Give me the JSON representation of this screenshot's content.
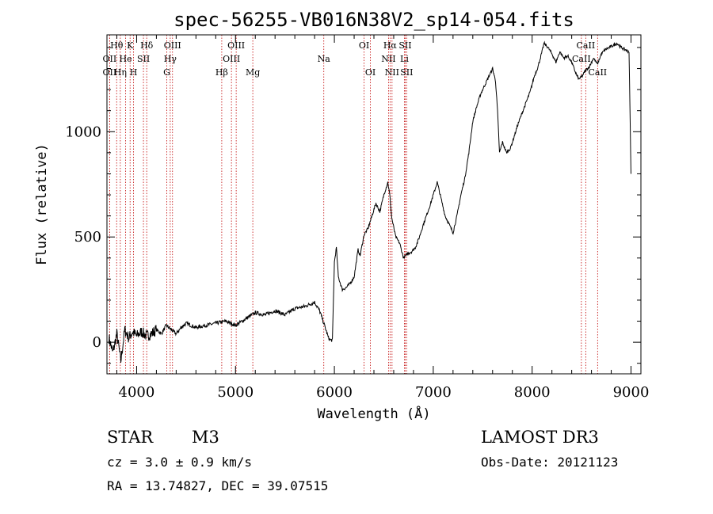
{
  "chart_data": {
    "type": "line",
    "title": "spec-56255-VB016N38V2_sp14-054.fits",
    "xlabel": "Wavelength (Å)",
    "ylabel": "Flux (relative)",
    "xlim": [
      3700,
      9100
    ],
    "ylim": [
      -150,
      1460
    ],
    "xticks": [
      4000,
      5000,
      6000,
      7000,
      8000,
      9000
    ],
    "yticks": [
      0,
      500,
      1000
    ],
    "spectrum": {
      "x": [
        3720,
        3760,
        3800,
        3840,
        3880,
        3920,
        3960,
        4000,
        4050,
        4100,
        4150,
        4200,
        4250,
        4300,
        4350,
        4400,
        4450,
        4500,
        4600,
        4700,
        4800,
        4900,
        5000,
        5100,
        5200,
        5300,
        5400,
        5500,
        5600,
        5700,
        5800,
        5850,
        5900,
        5940,
        5960,
        5980,
        6000,
        6020,
        6040,
        6080,
        6120,
        6160,
        6200,
        6240,
        6260,
        6300,
        6340,
        6380,
        6420,
        6460,
        6500,
        6540,
        6560,
        6580,
        6620,
        6660,
        6700,
        6740,
        6780,
        6820,
        6860,
        6900,
        6960,
        7000,
        7040,
        7060,
        7080,
        7120,
        7160,
        7200,
        7240,
        7280,
        7320,
        7360,
        7400,
        7440,
        7480,
        7520,
        7560,
        7600,
        7630,
        7650,
        7670,
        7700,
        7740,
        7780,
        7820,
        7860,
        7900,
        7940,
        7980,
        8020,
        8060,
        8100,
        8120,
        8160,
        8200,
        8240,
        8280,
        8320,
        8360,
        8400,
        8440,
        8470,
        8500,
        8540,
        8580,
        8620,
        8660,
        8700,
        8740,
        8780,
        8820,
        8860,
        8900,
        8940,
        8980,
        9000
      ],
      "y": [
        20,
        -50,
        40,
        -90,
        60,
        20,
        50,
        30,
        50,
        30,
        40,
        60,
        40,
        80,
        60,
        40,
        70,
        90,
        70,
        80,
        90,
        100,
        80,
        110,
        140,
        130,
        150,
        130,
        160,
        170,
        190,
        150,
        80,
        20,
        10,
        10,
        380,
        450,
        310,
        250,
        260,
        280,
        310,
        440,
        410,
        510,
        540,
        600,
        660,
        620,
        700,
        760,
        700,
        590,
        500,
        470,
        400,
        420,
        430,
        450,
        500,
        560,
        640,
        700,
        760,
        720,
        680,
        600,
        560,
        520,
        600,
        700,
        780,
        900,
        1050,
        1120,
        1180,
        1220,
        1260,
        1300,
        1240,
        1100,
        900,
        950,
        900,
        920,
        980,
        1040,
        1090,
        1140,
        1190,
        1260,
        1310,
        1380,
        1420,
        1400,
        1370,
        1330,
        1380,
        1350,
        1360,
        1330,
        1280,
        1250,
        1260,
        1290,
        1310,
        1350,
        1320,
        1370,
        1390,
        1400,
        1410,
        1420,
        1400,
        1390,
        1380,
        800
      ]
    },
    "lines": [
      {
        "label": "Hθ",
        "wavelength": 3798,
        "row": 0
      },
      {
        "label": "OII",
        "wavelength": 3727,
        "row": 1
      },
      {
        "label": "OII",
        "wavelength": 3727,
        "row": 2
      },
      {
        "label": "K",
        "wavelength": 3934,
        "row": 0
      },
      {
        "label": "He",
        "wavelength": 3889,
        "row": 1
      },
      {
        "label": "Hη",
        "wavelength": 3835,
        "row": 2
      },
      {
        "label": "Hδ",
        "wavelength": 4102,
        "row": 0
      },
      {
        "label": "SII",
        "wavelength": 4069,
        "row": 1
      },
      {
        "label": "H",
        "wavelength": 3969,
        "row": 2
      },
      {
        "label": "OIII",
        "wavelength": 4363,
        "row": 0
      },
      {
        "label": "Hγ",
        "wavelength": 4340,
        "row": 1
      },
      {
        "label": "G",
        "wavelength": 4305,
        "row": 2
      },
      {
        "label": "OIII",
        "wavelength": 5007,
        "row": 0
      },
      {
        "label": "OIII",
        "wavelength": 4959,
        "row": 1
      },
      {
        "label": "Hβ",
        "wavelength": 4861,
        "row": 2
      },
      {
        "label": "Mg",
        "wavelength": 5175,
        "row": 2
      },
      {
        "label": "Na",
        "wavelength": 5893,
        "row": 1
      },
      {
        "label": "OI",
        "wavelength": 6300,
        "row": 0
      },
      {
        "label": "OI",
        "wavelength": 6364,
        "row": 2
      },
      {
        "label": "Hα",
        "wavelength": 6563,
        "row": 0
      },
      {
        "label": "SII",
        "wavelength": 6716,
        "row": 0
      },
      {
        "label": "NII",
        "wavelength": 6548,
        "row": 1
      },
      {
        "label": "Li",
        "wavelength": 6708,
        "row": 1
      },
      {
        "label": "NII",
        "wavelength": 6583,
        "row": 2
      },
      {
        "label": "SII",
        "wavelength": 6731,
        "row": 2
      },
      {
        "label": "CaII",
        "wavelength": 8542,
        "row": 0
      },
      {
        "label": "CaII",
        "wavelength": 8498,
        "row": 1
      },
      {
        "label": "CaII",
        "wavelength": 8662,
        "row": 2
      }
    ],
    "line_color": "#c00000",
    "spectrum_color": "#000000"
  },
  "info": {
    "object_class": "STAR",
    "subclass": "M3",
    "survey": "LAMOST DR3",
    "cz": "cz = 3.0 ± 0.9 km/s",
    "obs_date": "Obs-Date: 20121123",
    "radec": "RA =  13.74827, DEC =  39.07515"
  }
}
